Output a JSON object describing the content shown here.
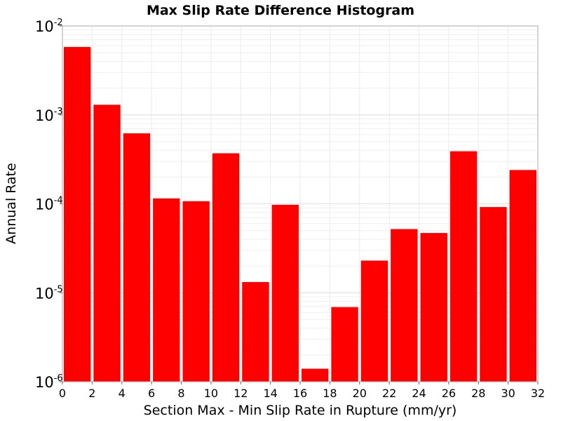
{
  "chart_data": {
    "type": "bar",
    "title": "Max Slip Rate Difference Histogram",
    "xlabel": "Section Max - Min Slip Rate in Rupture (mm/yr)",
    "ylabel": "Annual Rate",
    "xlim": [
      0,
      32
    ],
    "ylim": [
      1e-06,
      0.01
    ],
    "yscale": "log",
    "grid": true,
    "bar_color": "#ff0000",
    "bin_width": 2,
    "x_ticks": [
      0,
      2,
      4,
      6,
      8,
      10,
      12,
      14,
      16,
      18,
      20,
      22,
      24,
      26,
      28,
      30,
      32
    ],
    "y_ticks": [
      {
        "base": "10",
        "exp": "-6",
        "value": 1e-06
      },
      {
        "base": "10",
        "exp": "-5",
        "value": 1e-05
      },
      {
        "base": "10",
        "exp": "-4",
        "value": 0.0001
      },
      {
        "base": "10",
        "exp": "-3",
        "value": 0.001
      },
      {
        "base": "10",
        "exp": "-2",
        "value": 0.01
      }
    ],
    "bins": [
      {
        "x": 1,
        "value": 0.0058
      },
      {
        "x": 3,
        "value": 0.0013
      },
      {
        "x": 5,
        "value": 0.00062
      },
      {
        "x": 7,
        "value": 0.000115
      },
      {
        "x": 9,
        "value": 0.000107
      },
      {
        "x": 11,
        "value": 0.00037
      },
      {
        "x": 13,
        "value": 1.32e-05
      },
      {
        "x": 15,
        "value": 9.75e-05
      },
      {
        "x": 17,
        "value": 1.4e-06
      },
      {
        "x": 19,
        "value": 6.9e-06
      },
      {
        "x": 21,
        "value": 2.3e-05
      },
      {
        "x": 23,
        "value": 5.2e-05
      },
      {
        "x": 25,
        "value": 4.7e-05
      },
      {
        "x": 27,
        "value": 0.00039
      },
      {
        "x": 29,
        "value": 9.2e-05
      },
      {
        "x": 31,
        "value": 0.00024
      }
    ]
  }
}
